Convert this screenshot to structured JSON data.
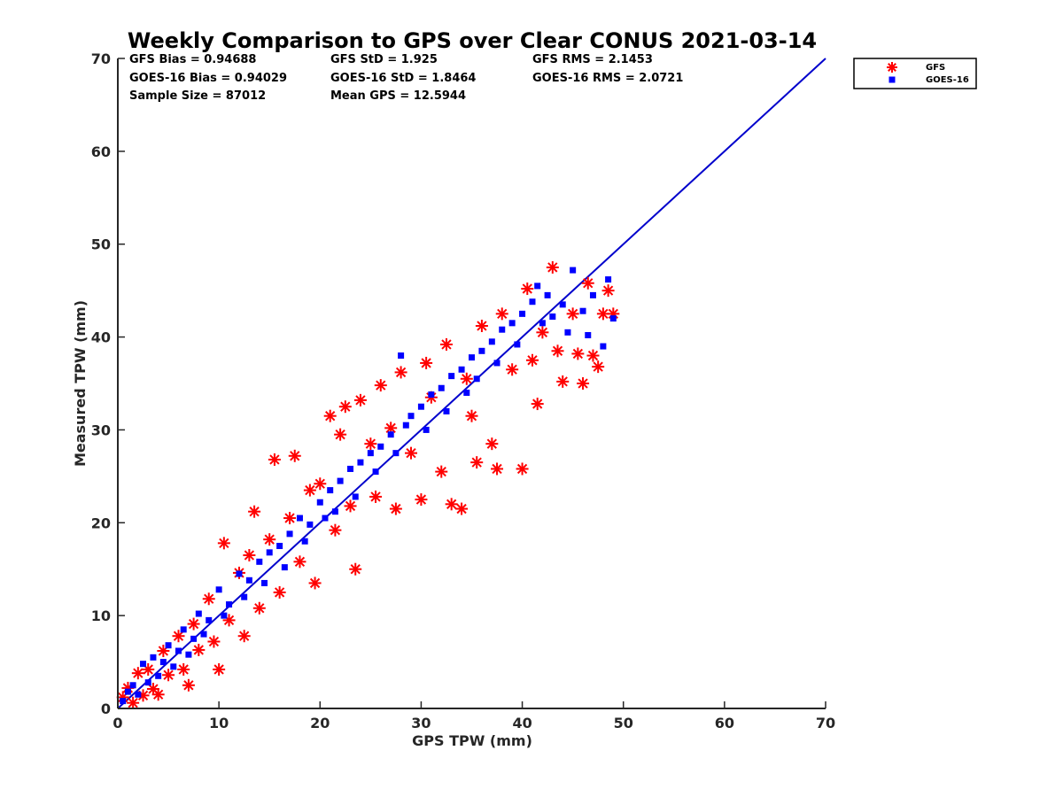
{
  "chart_data": {
    "type": "scatter",
    "title": "Weekly Comparison to GPS over Clear CONUS 2021-03-14",
    "xlabel": "GPS TPW (mm)",
    "ylabel": "Measured TPW (mm)",
    "xlim": [
      0,
      70
    ],
    "ylim": [
      0,
      70
    ],
    "xticks": [
      "0",
      "10",
      "20",
      "30",
      "40",
      "50",
      "60",
      "70"
    ],
    "yticks": [
      "0",
      "10",
      "20",
      "30",
      "40",
      "50",
      "60",
      "70"
    ],
    "grid": false,
    "legend_position": "outside-top-right",
    "stats": [
      [
        "GFS Bias = 0.94688",
        "GFS StD = 1.925",
        "GFS RMS = 2.1453"
      ],
      [
        "GOES-16 Bias = 0.94029",
        "GOES-16 StD = 1.8464",
        "GOES-16 RMS = 2.0721"
      ],
      [
        "Sample Size = 87012",
        "Mean GPS = 12.5944",
        ""
      ]
    ],
    "reference_line": {
      "x": [
        0,
        70
      ],
      "y": [
        0,
        70
      ],
      "color": "#0000cc"
    },
    "series": [
      {
        "name": "GFS",
        "marker": "asterisk",
        "color": "#ff0000",
        "points": [
          [
            0.5,
            1.2
          ],
          [
            1,
            2.2
          ],
          [
            1.5,
            0.6
          ],
          [
            2,
            3.8
          ],
          [
            2.5,
            1.4
          ],
          [
            3,
            4.2
          ],
          [
            3.5,
            2.1
          ],
          [
            4,
            1.5
          ],
          [
            4.5,
            6.2
          ],
          [
            5,
            3.6
          ],
          [
            6,
            7.8
          ],
          [
            6.5,
            4.2
          ],
          [
            7,
            2.5
          ],
          [
            7.5,
            9.1
          ],
          [
            8,
            6.3
          ],
          [
            9,
            11.8
          ],
          [
            9.5,
            7.2
          ],
          [
            10,
            4.2
          ],
          [
            10.5,
            17.8
          ],
          [
            11,
            9.5
          ],
          [
            12,
            14.6
          ],
          [
            12.5,
            7.8
          ],
          [
            13,
            16.5
          ],
          [
            13.5,
            21.2
          ],
          [
            14,
            10.8
          ],
          [
            15,
            18.2
          ],
          [
            15.5,
            26.8
          ],
          [
            16,
            12.5
          ],
          [
            17,
            20.5
          ],
          [
            17.5,
            27.2
          ],
          [
            18,
            15.8
          ],
          [
            19,
            23.5
          ],
          [
            19.5,
            13.5
          ],
          [
            20,
            24.2
          ],
          [
            21,
            31.5
          ],
          [
            21.5,
            19.2
          ],
          [
            22,
            29.5
          ],
          [
            22.5,
            32.5
          ],
          [
            23,
            21.8
          ],
          [
            23.5,
            15.0
          ],
          [
            24,
            33.2
          ],
          [
            25,
            28.5
          ],
          [
            25.5,
            22.8
          ],
          [
            26,
            34.8
          ],
          [
            27,
            30.2
          ],
          [
            27.5,
            21.5
          ],
          [
            28,
            36.2
          ],
          [
            29,
            27.5
          ],
          [
            30,
            22.5
          ],
          [
            30.5,
            37.2
          ],
          [
            31,
            33.5
          ],
          [
            32,
            25.5
          ],
          [
            32.5,
            39.2
          ],
          [
            33,
            22.0
          ],
          [
            34,
            21.5
          ],
          [
            34.5,
            35.5
          ],
          [
            35,
            31.5
          ],
          [
            35.5,
            26.5
          ],
          [
            36,
            41.2
          ],
          [
            37,
            28.5
          ],
          [
            37.5,
            25.8
          ],
          [
            38,
            42.5
          ],
          [
            39,
            36.5
          ],
          [
            40,
            25.8
          ],
          [
            40.5,
            45.2
          ],
          [
            41,
            37.5
          ],
          [
            41.5,
            32.8
          ],
          [
            42,
            40.5
          ],
          [
            43,
            47.5
          ],
          [
            43.5,
            38.5
          ],
          [
            44,
            35.2
          ],
          [
            45,
            42.5
          ],
          [
            45.5,
            38.2
          ],
          [
            46,
            35.0
          ],
          [
            46.5,
            45.8
          ],
          [
            47,
            38.0
          ],
          [
            47.5,
            36.8
          ],
          [
            48,
            42.5
          ],
          [
            48.5,
            45.0
          ],
          [
            49,
            42.5
          ]
        ]
      },
      {
        "name": "GOES-16",
        "marker": "square",
        "color": "#0000ff",
        "points": [
          [
            0.5,
            0.8
          ],
          [
            1,
            1.8
          ],
          [
            1.5,
            2.5
          ],
          [
            2,
            1.5
          ],
          [
            2.5,
            4.8
          ],
          [
            3,
            2.8
          ],
          [
            3.5,
            5.5
          ],
          [
            4,
            3.5
          ],
          [
            4.5,
            5.0
          ],
          [
            5,
            6.8
          ],
          [
            5.5,
            4.5
          ],
          [
            6,
            6.2
          ],
          [
            6.5,
            8.5
          ],
          [
            7,
            5.8
          ],
          [
            7.5,
            7.5
          ],
          [
            8,
            10.2
          ],
          [
            8.5,
            8.0
          ],
          [
            9,
            9.5
          ],
          [
            10,
            12.8
          ],
          [
            10.5,
            10.0
          ],
          [
            11,
            11.2
          ],
          [
            12,
            14.5
          ],
          [
            12.5,
            12.0
          ],
          [
            13,
            13.8
          ],
          [
            14,
            15.8
          ],
          [
            14.5,
            13.5
          ],
          [
            15,
            16.8
          ],
          [
            16,
            17.5
          ],
          [
            16.5,
            15.2
          ],
          [
            17,
            18.8
          ],
          [
            18,
            20.5
          ],
          [
            18.5,
            18.0
          ],
          [
            19,
            19.8
          ],
          [
            20,
            22.2
          ],
          [
            20.5,
            20.5
          ],
          [
            21,
            23.5
          ],
          [
            21.5,
            21.2
          ],
          [
            22,
            24.5
          ],
          [
            23,
            25.8
          ],
          [
            23.5,
            22.8
          ],
          [
            24,
            26.5
          ],
          [
            25,
            27.5
          ],
          [
            25.5,
            25.5
          ],
          [
            26,
            28.2
          ],
          [
            27,
            29.5
          ],
          [
            27.5,
            27.5
          ],
          [
            28,
            38.0
          ],
          [
            28.5,
            30.5
          ],
          [
            29,
            31.5
          ],
          [
            30,
            32.5
          ],
          [
            30.5,
            30.0
          ],
          [
            31,
            33.8
          ],
          [
            32,
            34.5
          ],
          [
            32.5,
            32.0
          ],
          [
            33,
            35.8
          ],
          [
            34,
            36.5
          ],
          [
            34.5,
            34.0
          ],
          [
            35,
            37.8
          ],
          [
            35.5,
            35.5
          ],
          [
            36,
            38.5
          ],
          [
            37,
            39.5
          ],
          [
            37.5,
            37.2
          ],
          [
            38,
            40.8
          ],
          [
            39,
            41.5
          ],
          [
            39.5,
            39.2
          ],
          [
            40,
            42.5
          ],
          [
            41,
            43.8
          ],
          [
            41.5,
            45.5
          ],
          [
            42,
            41.5
          ],
          [
            42.5,
            44.5
          ],
          [
            43,
            42.2
          ],
          [
            44,
            43.5
          ],
          [
            44.5,
            40.5
          ],
          [
            45,
            47.2
          ],
          [
            46,
            42.8
          ],
          [
            46.5,
            40.2
          ],
          [
            47,
            44.5
          ],
          [
            48,
            39.0
          ],
          [
            48.5,
            46.2
          ],
          [
            49,
            42.0
          ]
        ]
      }
    ]
  }
}
